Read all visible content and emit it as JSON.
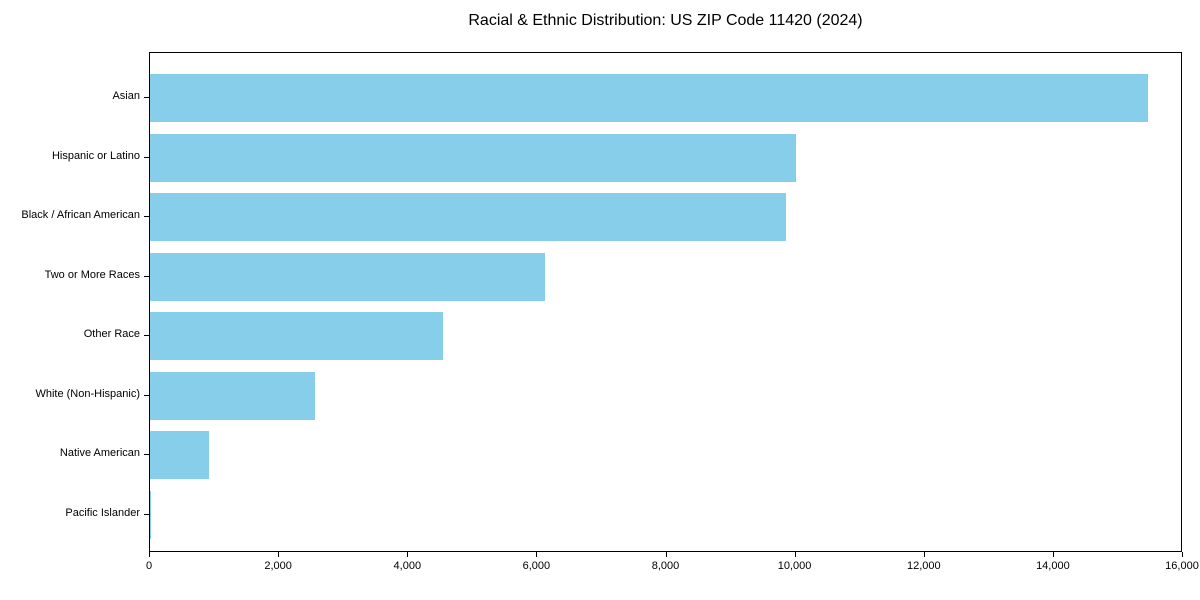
{
  "chart_data": {
    "type": "bar",
    "orientation": "horizontal",
    "title": "Racial & Ethnic Distribution: US ZIP Code 11420 (2024)",
    "categories": [
      "Asian",
      "Hispanic or Latino",
      "Black / African American",
      "Two or More Races",
      "Other Race",
      "White (Non-Hispanic)",
      "Native American",
      "Pacific Islander"
    ],
    "values": [
      15460,
      10000,
      9850,
      6120,
      4530,
      2560,
      920,
      20
    ],
    "bar_color": "#87CEEB",
    "xlabel": "",
    "ylabel": "",
    "xlim": [
      0,
      16000
    ],
    "xticks": [
      0,
      2000,
      4000,
      6000,
      8000,
      10000,
      12000,
      14000,
      16000
    ],
    "xtick_labels": [
      "0",
      "2,000",
      "4,000",
      "6,000",
      "8,000",
      "10,000",
      "12,000",
      "14,000",
      "16,000"
    ],
    "grid": false,
    "legend": "none",
    "background_color": "#ffffff",
    "spine_color": "#000000"
  }
}
